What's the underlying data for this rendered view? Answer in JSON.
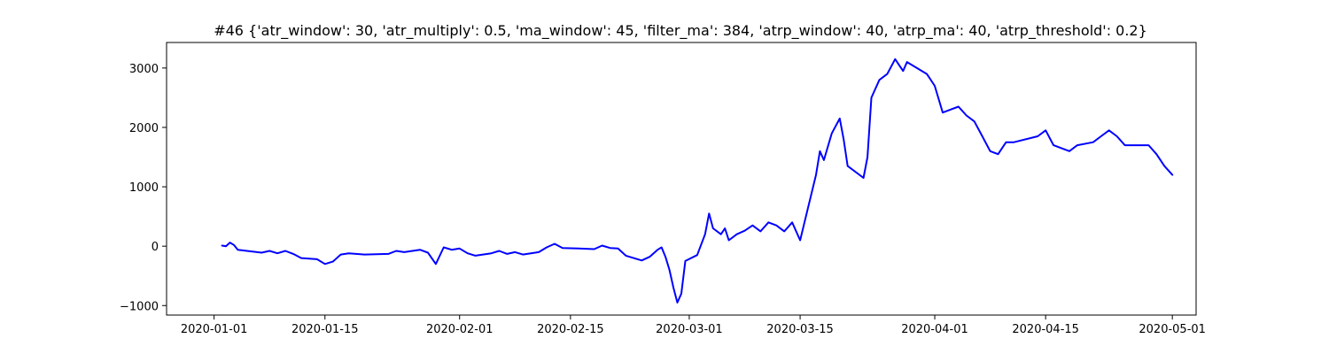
{
  "chart_data": {
    "type": "line",
    "title": "#46 {'atr_window': 30, 'atr_multiply': 0.5, 'ma_window': 45, 'filter_ma': 384, 'atrp_window': 40, 'atrp_ma': 40, 'atrp_threshold': 0.2}",
    "xlabel": "",
    "ylabel": "",
    "x_type": "date",
    "xlim": [
      "2019-12-26",
      "2020-05-04"
    ],
    "ylim": [
      -1160,
      3430
    ],
    "x_ticks": [
      "2020-01-01",
      "2020-01-15",
      "2020-02-01",
      "2020-02-15",
      "2020-03-01",
      "2020-03-15",
      "2020-04-01",
      "2020-04-15",
      "2020-05-01"
    ],
    "x_tick_labels": [
      "2020-01-01",
      "2020-01-15",
      "2020-02-01",
      "2020-02-15",
      "2020-03-01",
      "2020-03-15",
      "2020-04-01",
      "2020-04-15",
      "2020-05-01"
    ],
    "y_ticks": [
      -1000,
      0,
      1000,
      2000,
      3000
    ],
    "y_tick_labels": [
      "−1000",
      "0",
      "1000",
      "2000",
      "3000"
    ],
    "grid": false,
    "series": [
      {
        "color": "#0000ff",
        "points": [
          [
            "2020-01-02",
            10
          ],
          [
            "2020-01-02 12:00",
            0
          ],
          [
            "2020-01-03",
            60
          ],
          [
            "2020-01-03 12:00",
            20
          ],
          [
            "2020-01-04",
            -60
          ],
          [
            "2020-01-07",
            -110
          ],
          [
            "2020-01-08",
            -80
          ],
          [
            "2020-01-09",
            -120
          ],
          [
            "2020-01-10",
            -80
          ],
          [
            "2020-01-11",
            -130
          ],
          [
            "2020-01-12",
            -200
          ],
          [
            "2020-01-14",
            -220
          ],
          [
            "2020-01-15",
            -300
          ],
          [
            "2020-01-16",
            -260
          ],
          [
            "2020-01-17",
            -140
          ],
          [
            "2020-01-18",
            -120
          ],
          [
            "2020-01-20",
            -140
          ],
          [
            "2020-01-23",
            -130
          ],
          [
            "2020-01-24",
            -80
          ],
          [
            "2020-01-25",
            -100
          ],
          [
            "2020-01-27",
            -60
          ],
          [
            "2020-01-28",
            -110
          ],
          [
            "2020-01-29",
            -300
          ],
          [
            "2020-01-30",
            -20
          ],
          [
            "2020-01-31",
            -60
          ],
          [
            "2020-02-01",
            -40
          ],
          [
            "2020-02-02",
            -120
          ],
          [
            "2020-02-03",
            -160
          ],
          [
            "2020-02-05",
            -120
          ],
          [
            "2020-02-06",
            -80
          ],
          [
            "2020-02-07",
            -130
          ],
          [
            "2020-02-08",
            -100
          ],
          [
            "2020-02-09",
            -140
          ],
          [
            "2020-02-11",
            -100
          ],
          [
            "2020-02-12",
            -20
          ],
          [
            "2020-02-13",
            40
          ],
          [
            "2020-02-14",
            -30
          ],
          [
            "2020-02-16",
            -40
          ],
          [
            "2020-02-18",
            -50
          ],
          [
            "2020-02-19",
            10
          ],
          [
            "2020-02-20",
            -30
          ],
          [
            "2020-02-21",
            -40
          ],
          [
            "2020-02-22",
            -160
          ],
          [
            "2020-02-24",
            -240
          ],
          [
            "2020-02-25",
            -180
          ],
          [
            "2020-02-26",
            -60
          ],
          [
            "2020-02-26 12:00",
            -20
          ],
          [
            "2020-02-27",
            -180
          ],
          [
            "2020-02-27 12:00",
            -400
          ],
          [
            "2020-02-28",
            -700
          ],
          [
            "2020-02-28 12:00",
            -950
          ],
          [
            "2020-02-29",
            -800
          ],
          [
            "2020-02-29 12:00",
            -250
          ],
          [
            "2020-03-02",
            -150
          ],
          [
            "2020-03-03",
            200
          ],
          [
            "2020-03-03 12:00",
            550
          ],
          [
            "2020-03-04",
            300
          ],
          [
            "2020-03-05",
            200
          ],
          [
            "2020-03-05 12:00",
            300
          ],
          [
            "2020-03-06",
            100
          ],
          [
            "2020-03-07",
            200
          ],
          [
            "2020-03-08",
            260
          ],
          [
            "2020-03-09",
            350
          ],
          [
            "2020-03-10",
            250
          ],
          [
            "2020-03-11",
            400
          ],
          [
            "2020-03-12",
            350
          ],
          [
            "2020-03-13",
            250
          ],
          [
            "2020-03-14",
            400
          ],
          [
            "2020-03-15",
            100
          ],
          [
            "2020-03-17",
            1200
          ],
          [
            "2020-03-17 12:00",
            1600
          ],
          [
            "2020-03-18",
            1450
          ],
          [
            "2020-03-19",
            1900
          ],
          [
            "2020-03-20",
            2150
          ],
          [
            "2020-03-20 12:00",
            1800
          ],
          [
            "2020-03-21",
            1350
          ],
          [
            "2020-03-23",
            1150
          ],
          [
            "2020-03-23 12:00",
            1500
          ],
          [
            "2020-03-24",
            2500
          ],
          [
            "2020-03-25",
            2800
          ],
          [
            "2020-03-26",
            2900
          ],
          [
            "2020-03-27",
            3150
          ],
          [
            "2020-03-28",
            2950
          ],
          [
            "2020-03-28 12:00",
            3100
          ],
          [
            "2020-03-31",
            2900
          ],
          [
            "2020-04-01",
            2700
          ],
          [
            "2020-04-02",
            2250
          ],
          [
            "2020-04-03",
            2300
          ],
          [
            "2020-04-04",
            2350
          ],
          [
            "2020-04-05",
            2200
          ],
          [
            "2020-04-06",
            2100
          ],
          [
            "2020-04-07",
            1850
          ],
          [
            "2020-04-08",
            1600
          ],
          [
            "2020-04-09",
            1550
          ],
          [
            "2020-04-10",
            1750
          ],
          [
            "2020-04-11",
            1750
          ],
          [
            "2020-04-14",
            1850
          ],
          [
            "2020-04-15",
            1950
          ],
          [
            "2020-04-16",
            1700
          ],
          [
            "2020-04-17",
            1650
          ],
          [
            "2020-04-18",
            1600
          ],
          [
            "2020-04-19",
            1700
          ],
          [
            "2020-04-21",
            1750
          ],
          [
            "2020-04-22",
            1850
          ],
          [
            "2020-04-23",
            1950
          ],
          [
            "2020-04-24",
            1850
          ],
          [
            "2020-04-25",
            1700
          ],
          [
            "2020-04-28",
            1700
          ],
          [
            "2020-04-29",
            1550
          ],
          [
            "2020-04-30",
            1350
          ],
          [
            "2020-05-01",
            1200
          ]
        ]
      }
    ]
  }
}
